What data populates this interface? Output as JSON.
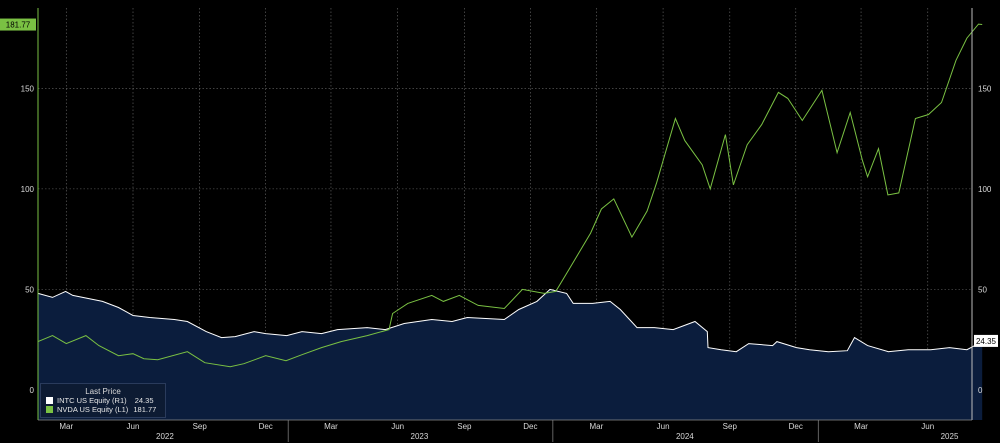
{
  "chart_data": {
    "type": "line",
    "title": "",
    "x_range": [
      "2022-01-21",
      "2025-08-01"
    ],
    "left_axis": {
      "ticks": [
        0,
        50,
        100,
        150
      ],
      "range": [
        -15,
        190
      ],
      "color": "#7ac143"
    },
    "right_axis": {
      "ticks": [
        0,
        50,
        100,
        150
      ],
      "range": [
        -15,
        190
      ],
      "color": "#ffffff"
    },
    "x_tick_labels": [
      "Mar",
      "Jun",
      "Sep",
      "Dec",
      "Mar",
      "Jun",
      "Sep",
      "Dec",
      "Mar",
      "Jun",
      "Sep",
      "Dec",
      "Mar",
      "Jun"
    ],
    "x_tick_dates": [
      "2022-03-01",
      "2022-06-01",
      "2022-09-01",
      "2022-12-01",
      "2023-03-01",
      "2023-06-01",
      "2023-09-01",
      "2023-12-01",
      "2024-03-01",
      "2024-06-01",
      "2024-09-01",
      "2024-12-01",
      "2025-03-01",
      "2025-06-01"
    ],
    "year_labels": [
      "2022",
      "2023",
      "2024",
      "2025"
    ],
    "year_label_dates": [
      "2022-07-15",
      "2023-07-01",
      "2024-07-01",
      "2025-07-01"
    ],
    "grid": true,
    "legend": {
      "title": "Last Price",
      "placement": "bottom-left",
      "entries": [
        {
          "name": "INTC US Equity",
          "axis": "(R1)",
          "last": "24.35",
          "color": "#ffffff"
        },
        {
          "name": "NVDA US Equity",
          "axis": "(L1)",
          "last": "181.77",
          "color": "#7ac143"
        }
      ]
    },
    "last_value_badges": {
      "left": "181.77",
      "right": "24.35"
    },
    "series": [
      {
        "name": "NVDA US Equity",
        "axis": "left",
        "style": "line",
        "color": "#7ac143",
        "points": [
          [
            "2022-01-21",
            24
          ],
          [
            "2022-02-10",
            27
          ],
          [
            "2022-03-01",
            23
          ],
          [
            "2022-03-28",
            27
          ],
          [
            "2022-04-15",
            22
          ],
          [
            "2022-05-12",
            17
          ],
          [
            "2022-06-01",
            18
          ],
          [
            "2022-06-16",
            15.5
          ],
          [
            "2022-07-05",
            15
          ],
          [
            "2022-08-15",
            19
          ],
          [
            "2022-09-08",
            13.5
          ],
          [
            "2022-10-13",
            11.5
          ],
          [
            "2022-11-01",
            13
          ],
          [
            "2022-12-01",
            17
          ],
          [
            "2022-12-29",
            14.5
          ],
          [
            "2023-01-20",
            17.5
          ],
          [
            "2023-02-16",
            21
          ],
          [
            "2023-03-15",
            24
          ],
          [
            "2023-04-20",
            27
          ],
          [
            "2023-05-20",
            30
          ],
          [
            "2023-05-25",
            38
          ],
          [
            "2023-06-15",
            43
          ],
          [
            "2023-07-18",
            47
          ],
          [
            "2023-08-03",
            44
          ],
          [
            "2023-08-25",
            47
          ],
          [
            "2023-09-20",
            42
          ],
          [
            "2023-10-26",
            40.5
          ],
          [
            "2023-11-20",
            50
          ],
          [
            "2023-12-20",
            48
          ],
          [
            "2024-01-05",
            49
          ],
          [
            "2024-01-25",
            61
          ],
          [
            "2024-02-22",
            78
          ],
          [
            "2024-03-08",
            90
          ],
          [
            "2024-03-25",
            95
          ],
          [
            "2024-04-19",
            76
          ],
          [
            "2024-05-10",
            89
          ],
          [
            "2024-05-23",
            103
          ],
          [
            "2024-06-18",
            135
          ],
          [
            "2024-07-01",
            124
          ],
          [
            "2024-07-25",
            112
          ],
          [
            "2024-08-05",
            100
          ],
          [
            "2024-08-26",
            127
          ],
          [
            "2024-09-06",
            102
          ],
          [
            "2024-09-25",
            122
          ],
          [
            "2024-10-15",
            132
          ],
          [
            "2024-11-07",
            148
          ],
          [
            "2024-11-20",
            145
          ],
          [
            "2024-12-10",
            134
          ],
          [
            "2025-01-06",
            149
          ],
          [
            "2025-01-27",
            118
          ],
          [
            "2025-02-14",
            138
          ],
          [
            "2025-03-03",
            114
          ],
          [
            "2025-03-10",
            106
          ],
          [
            "2025-03-25",
            120
          ],
          [
            "2025-04-07",
            97
          ],
          [
            "2025-04-22",
            98
          ],
          [
            "2025-05-15",
            135
          ],
          [
            "2025-06-02",
            137
          ],
          [
            "2025-06-20",
            143
          ],
          [
            "2025-07-10",
            164
          ],
          [
            "2025-07-25",
            175
          ],
          [
            "2025-08-10",
            182
          ],
          [
            "2025-08-15",
            181.77
          ]
        ]
      },
      {
        "name": "INTC US Equity",
        "axis": "right",
        "style": "area",
        "color": "#ffffff",
        "fill": "#0b1d3d",
        "points": [
          [
            "2022-01-21",
            48
          ],
          [
            "2022-02-10",
            46
          ],
          [
            "2022-02-28",
            49
          ],
          [
            "2022-03-10",
            47
          ],
          [
            "2022-04-20",
            44
          ],
          [
            "2022-05-12",
            41
          ],
          [
            "2022-06-01",
            37
          ],
          [
            "2022-06-24",
            36
          ],
          [
            "2022-07-28",
            35
          ],
          [
            "2022-08-15",
            34
          ],
          [
            "2022-09-10",
            29
          ],
          [
            "2022-10-01",
            26
          ],
          [
            "2022-10-20",
            26.5
          ],
          [
            "2022-11-15",
            29
          ],
          [
            "2022-12-01",
            28
          ],
          [
            "2022-12-30",
            27
          ],
          [
            "2023-01-20",
            29
          ],
          [
            "2023-02-16",
            28
          ],
          [
            "2023-03-10",
            30
          ],
          [
            "2023-04-20",
            31
          ],
          [
            "2023-05-15",
            30
          ],
          [
            "2023-06-10",
            33
          ],
          [
            "2023-07-18",
            35
          ],
          [
            "2023-08-15",
            34
          ],
          [
            "2023-09-05",
            36
          ],
          [
            "2023-10-26",
            35
          ],
          [
            "2023-11-15",
            40
          ],
          [
            "2023-12-10",
            44
          ],
          [
            "2023-12-28",
            50
          ],
          [
            "2024-01-20",
            48
          ],
          [
            "2024-01-29",
            43
          ],
          [
            "2024-02-25",
            43
          ],
          [
            "2024-03-20",
            44
          ],
          [
            "2024-04-03",
            40
          ],
          [
            "2024-04-26",
            31
          ],
          [
            "2024-05-20",
            31
          ],
          [
            "2024-06-15",
            30
          ],
          [
            "2024-07-15",
            34
          ],
          [
            "2024-08-01",
            29
          ],
          [
            "2024-08-02",
            21
          ],
          [
            "2024-08-20",
            20
          ],
          [
            "2024-09-10",
            19
          ],
          [
            "2024-09-27",
            23
          ],
          [
            "2024-10-30",
            22
          ],
          [
            "2024-11-05",
            24
          ],
          [
            "2024-12-02",
            21
          ],
          [
            "2024-12-20",
            20
          ],
          [
            "2025-01-15",
            19
          ],
          [
            "2025-02-10",
            19.5
          ],
          [
            "2025-02-20",
            26
          ],
          [
            "2025-03-10",
            22
          ],
          [
            "2025-04-08",
            19
          ],
          [
            "2025-05-05",
            20
          ],
          [
            "2025-06-05",
            20
          ],
          [
            "2025-07-01",
            21
          ],
          [
            "2025-07-25",
            20
          ],
          [
            "2025-08-10",
            23
          ],
          [
            "2025-08-15",
            24.35
          ]
        ]
      }
    ]
  }
}
